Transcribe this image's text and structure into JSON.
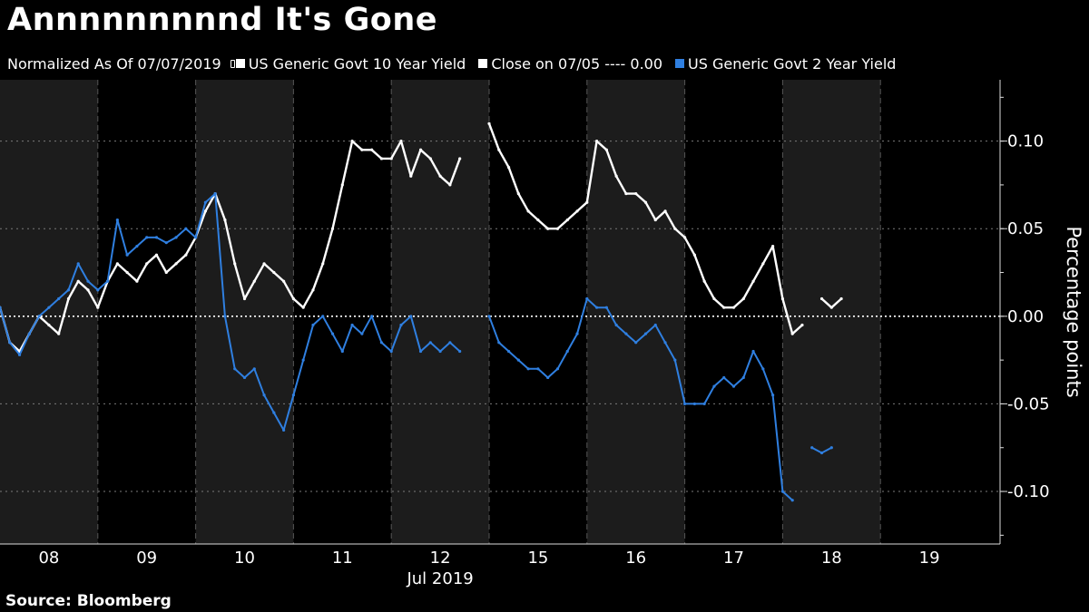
{
  "title": "Annnnnnnnnd It's Gone",
  "legend": {
    "normalized_label": "Normalized As Of 07/07/2019",
    "series_10y": "US Generic Govt 10 Year Yield",
    "close_label": "Close on 07/05 ---- 0.00",
    "series_2y": "US Generic Govt 2 Year Yield"
  },
  "source": "Source: Bloomberg",
  "colors": {
    "background": "#000000",
    "shade": "#1c1c1c",
    "series_10y": "#ffffff",
    "series_2y": "#2f7fe0",
    "grid": "#7a7a7a"
  },
  "chart_data": {
    "type": "line",
    "xlabel": "Jul 2019",
    "ylabel": "Percentage points",
    "ylim": [
      -0.13,
      0.135
    ],
    "y_ticks": [
      "0.10",
      "0.05",
      "0.00",
      "-0.05",
      "-0.10"
    ],
    "y_tick_values": [
      0.1,
      0.05,
      0.0,
      -0.05,
      -0.1
    ],
    "grid": true,
    "reference_line": {
      "label": "Close on 07/05",
      "value": 0.0
    },
    "x_tick_labels": [
      "08",
      "09",
      "10",
      "11",
      "12",
      "15",
      "16",
      "17",
      "18",
      "19"
    ],
    "x": [
      8.0,
      8.1,
      8.2,
      8.3,
      8.4,
      8.5,
      8.6,
      8.7,
      8.8,
      8.9,
      9.0,
      9.1,
      9.2,
      9.3,
      9.4,
      9.5,
      9.6,
      9.7,
      9.8,
      9.9,
      10.0,
      10.1,
      10.2,
      10.3,
      10.4,
      10.5,
      10.6,
      10.7,
      10.8,
      10.9,
      11.0,
      11.1,
      11.2,
      11.3,
      11.4,
      11.5,
      11.6,
      11.7,
      11.8,
      11.9,
      12.0,
      12.1,
      12.2,
      12.3,
      12.4,
      12.5,
      12.6,
      12.7,
      12.8,
      12.9,
      15.0,
      15.1,
      15.2,
      15.3,
      15.4,
      15.5,
      15.6,
      15.7,
      15.8,
      15.9,
      16.0,
      16.1,
      16.2,
      16.3,
      16.4,
      16.5,
      16.6,
      16.7,
      16.8,
      16.9,
      17.0,
      17.1,
      17.2,
      17.3,
      17.4,
      17.5,
      17.6,
      17.7,
      17.8,
      17.9,
      18.0,
      18.1,
      18.2,
      18.3,
      18.4,
      18.5,
      18.6,
      18.7,
      18.8,
      18.9,
      19.0,
      19.1
    ],
    "series": [
      {
        "name": "US Generic Govt 10 Year Yield",
        "values": [
          0.005,
          -0.015,
          -0.02,
          -0.01,
          0.0,
          -0.005,
          -0.01,
          0.01,
          0.02,
          0.015,
          0.005,
          0.02,
          0.03,
          0.025,
          0.02,
          0.03,
          0.035,
          0.025,
          0.03,
          0.035,
          0.045,
          0.06,
          0.07,
          0.055,
          0.03,
          0.01,
          0.02,
          0.03,
          0.025,
          0.02,
          0.01,
          0.005,
          0.015,
          0.03,
          0.05,
          0.075,
          0.1,
          0.095,
          0.095,
          0.09,
          0.09,
          0.1,
          0.08,
          0.095,
          0.09,
          0.08,
          0.075,
          0.09,
          null,
          null,
          0.11,
          0.095,
          0.085,
          0.07,
          0.06,
          0.055,
          0.05,
          0.05,
          0.055,
          0.06,
          0.065,
          0.1,
          0.095,
          0.08,
          0.07,
          0.07,
          0.065,
          0.055,
          0.06,
          0.05,
          0.045,
          0.035,
          0.02,
          0.01,
          0.005,
          0.005,
          0.01,
          0.02,
          0.03,
          0.04,
          0.01,
          -0.01,
          -0.005,
          null,
          0.01,
          0.005,
          0.01,
          null,
          null,
          null,
          null,
          null
        ]
      },
      {
        "name": "US Generic Govt 2 Year Yield",
        "values": [
          0.005,
          -0.015,
          -0.022,
          -0.01,
          0.0,
          0.005,
          0.01,
          0.015,
          0.03,
          0.02,
          0.015,
          0.02,
          0.055,
          0.035,
          0.04,
          0.045,
          0.045,
          0.042,
          0.045,
          0.05,
          0.045,
          0.065,
          0.07,
          0.0,
          -0.03,
          -0.035,
          -0.03,
          -0.045,
          -0.055,
          -0.065,
          -0.045,
          -0.025,
          -0.005,
          0.0,
          -0.01,
          -0.02,
          -0.005,
          -0.01,
          0.0,
          -0.015,
          -0.02,
          -0.005,
          0.0,
          -0.02,
          -0.015,
          -0.02,
          -0.015,
          -0.02,
          null,
          null,
          0.0,
          -0.015,
          -0.02,
          -0.025,
          -0.03,
          -0.03,
          -0.035,
          -0.03,
          -0.02,
          -0.01,
          0.01,
          0.005,
          0.005,
          -0.005,
          -0.01,
          -0.015,
          -0.01,
          -0.005,
          -0.015,
          -0.025,
          -0.05,
          -0.05,
          -0.05,
          -0.04,
          -0.035,
          -0.04,
          -0.035,
          -0.02,
          -0.03,
          -0.045,
          -0.1,
          -0.105,
          null,
          -0.075,
          -0.078,
          -0.075,
          null,
          null,
          null,
          null,
          null,
          null
        ]
      }
    ]
  }
}
